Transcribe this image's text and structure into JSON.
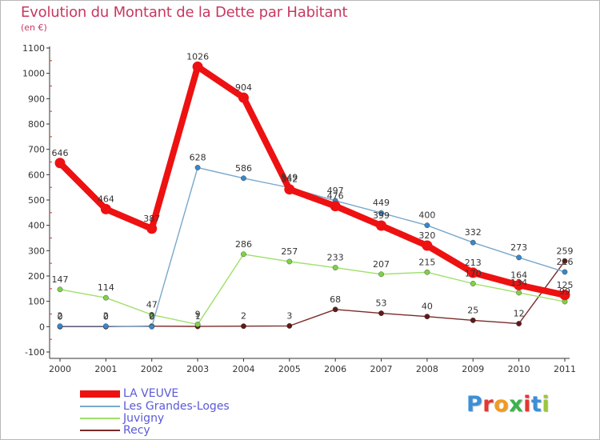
{
  "title": "Evolution du Montant de la Dette par Habitant",
  "subtitle": "(en €)",
  "logo": {
    "text": "Proxiti",
    "colors": [
      "#3a8fd9",
      "#e8352f",
      "#f39a1e",
      "#3bb34a",
      "#e8352f",
      "#3a8fd9",
      "#9bc53d"
    ]
  },
  "chart_data": {
    "type": "line",
    "x": [
      2000,
      2001,
      2002,
      2003,
      2004,
      2005,
      2006,
      2007,
      2008,
      2009,
      2010,
      2011
    ],
    "x_tick_labels": [
      "2000",
      "2001",
      "2002",
      "2003",
      "2004",
      "2005",
      "2006",
      "2007",
      "2008",
      "2009",
      "2010",
      "2011"
    ],
    "ylim": [
      -100,
      1100
    ],
    "y_ticks": [
      -100,
      0,
      100,
      200,
      300,
      400,
      500,
      600,
      700,
      800,
      900,
      1000,
      1100
    ],
    "y_tick_labels": [
      "-100",
      "0",
      "100",
      "200",
      "300",
      "400",
      "500",
      "600",
      "700",
      "800",
      "900",
      "1000",
      "1100"
    ],
    "grid": false,
    "legend_position": "bottom-left",
    "series": [
      {
        "name": "Recy",
        "color": "#7a2a2a",
        "values": [
          0,
          0,
          2,
          1,
          2,
          3,
          68,
          53,
          40,
          25,
          12,
          259
        ],
        "labels": [
          "0",
          "0",
          "2",
          "1",
          "2",
          "3",
          "68",
          "53",
          "40",
          "25",
          "12",
          "259"
        ]
      },
      {
        "name": "Juvigny",
        "color": "#9ee068",
        "values": [
          147,
          114,
          47,
          9,
          286,
          257,
          233,
          207,
          215,
          170,
          134,
          99
        ],
        "labels": [
          "147",
          "114",
          "47",
          "9",
          "286",
          "257",
          "233",
          "207",
          "215",
          "",
          "",
          ""
        ]
      },
      {
        "name": "Les Grandes-Loges",
        "color": "#78a8cc",
        "values": [
          2,
          2,
          0,
          628,
          586,
          549,
          497,
          449,
          400,
          332,
          273,
          216
        ],
        "labels": [
          "2",
          "2",
          "0",
          "628",
          "586",
          "549",
          "497",
          "449",
          "400",
          "332",
          "273",
          "216"
        ]
      },
      {
        "name": "LA VEUVE",
        "color": "#ee1111",
        "values": [
          646,
          464,
          387,
          1026,
          904,
          542,
          476,
          399,
          320,
          213,
          164,
          125
        ],
        "labels": [
          "646",
          "464",
          "387",
          "1026",
          "904",
          "542",
          "476",
          "399",
          "320",
          "213",
          "164",
          "125"
        ]
      }
    ],
    "extra_labels": [
      {
        "series": "Juvigny",
        "x": 2009,
        "text": "170"
      },
      {
        "series": "Juvigny",
        "x": 2010,
        "text": "134"
      },
      {
        "series": "Juvigny",
        "x": 2011,
        "text": "99"
      }
    ],
    "legend": [
      "LA VEUVE",
      "Les Grandes-Loges",
      "Juvigny",
      "Recy"
    ]
  }
}
